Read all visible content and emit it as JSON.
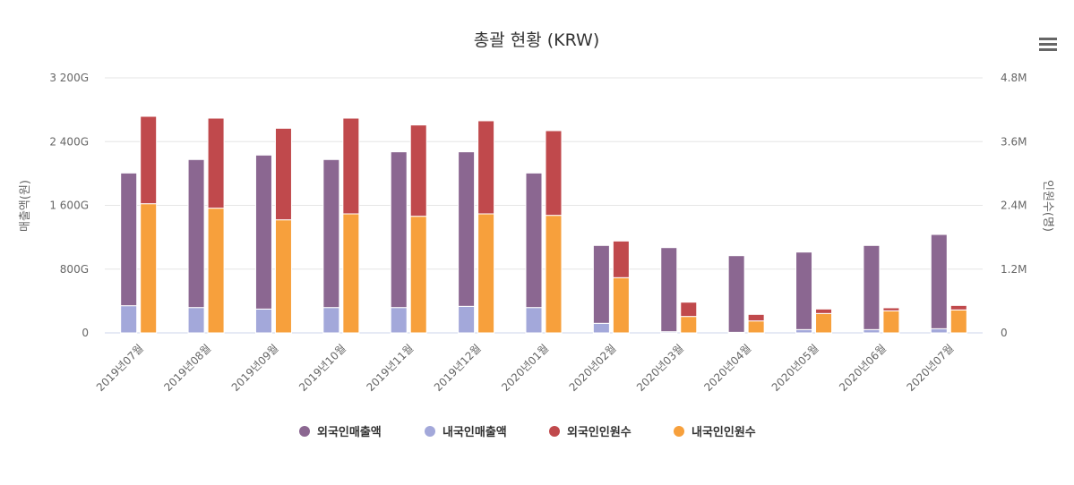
{
  "chart_data": {
    "type": "bar",
    "stacked": true,
    "title": "총괄 현황 (KRW)",
    "categories": [
      "2019년07월",
      "2019년08월",
      "2019년09월",
      "2019년10월",
      "2019년11월",
      "2019년12월",
      "2020년01월",
      "2020년02월",
      "2020년03월",
      "2020년04월",
      "2020년05월",
      "2020년06월",
      "2020년07월"
    ],
    "y_left": {
      "title": "매출액(원)",
      "range": [
        0,
        3200
      ],
      "unit": "G",
      "ticks": [
        0,
        800,
        1600,
        2400,
        3200
      ],
      "tick_labels": [
        "0",
        "800G",
        "1 600G",
        "2 400G",
        "3 200G"
      ]
    },
    "y_right": {
      "title": "인원수(명)",
      "range": [
        0,
        4.8
      ],
      "unit": "M",
      "ticks": [
        0,
        1.2,
        2.4,
        3.6,
        4.8
      ],
      "tick_labels": [
        "0",
        "1.2M",
        "2.4M",
        "3.6M",
        "4.8M"
      ]
    },
    "grid": true,
    "legend_position": "bottom",
    "series": [
      {
        "name": "외국인매출액",
        "stack": "sales",
        "axis": "left",
        "color": "#8B6791",
        "values": [
          1665,
          1857,
          1932,
          1857,
          1954,
          1939,
          1688,
          977,
          1055,
          962,
          973,
          1056,
          1183
        ]
      },
      {
        "name": "내국인매출액",
        "stack": "sales",
        "axis": "left",
        "color": "#A3A8DA",
        "values": [
          341,
          318,
          299,
          318,
          318,
          333,
          318,
          120,
          15,
          7,
          41,
          41,
          52
        ]
      },
      {
        "name": "외국인인원수",
        "stack": "visitors",
        "axis": "right",
        "color": "#C0494C",
        "values": [
          1.645,
          1.695,
          1.723,
          1.802,
          1.718,
          1.752,
          1.594,
          0.69,
          0.269,
          0.123,
          0.084,
          0.057,
          0.084
        ]
      },
      {
        "name": "내국인인원수",
        "stack": "visitors",
        "axis": "right",
        "color": "#F7A03C",
        "values": [
          2.431,
          2.347,
          2.128,
          2.24,
          2.195,
          2.24,
          2.212,
          1.039,
          0.309,
          0.225,
          0.365,
          0.415,
          0.432
        ]
      }
    ]
  },
  "menu_icon": "hamburger-menu-icon"
}
